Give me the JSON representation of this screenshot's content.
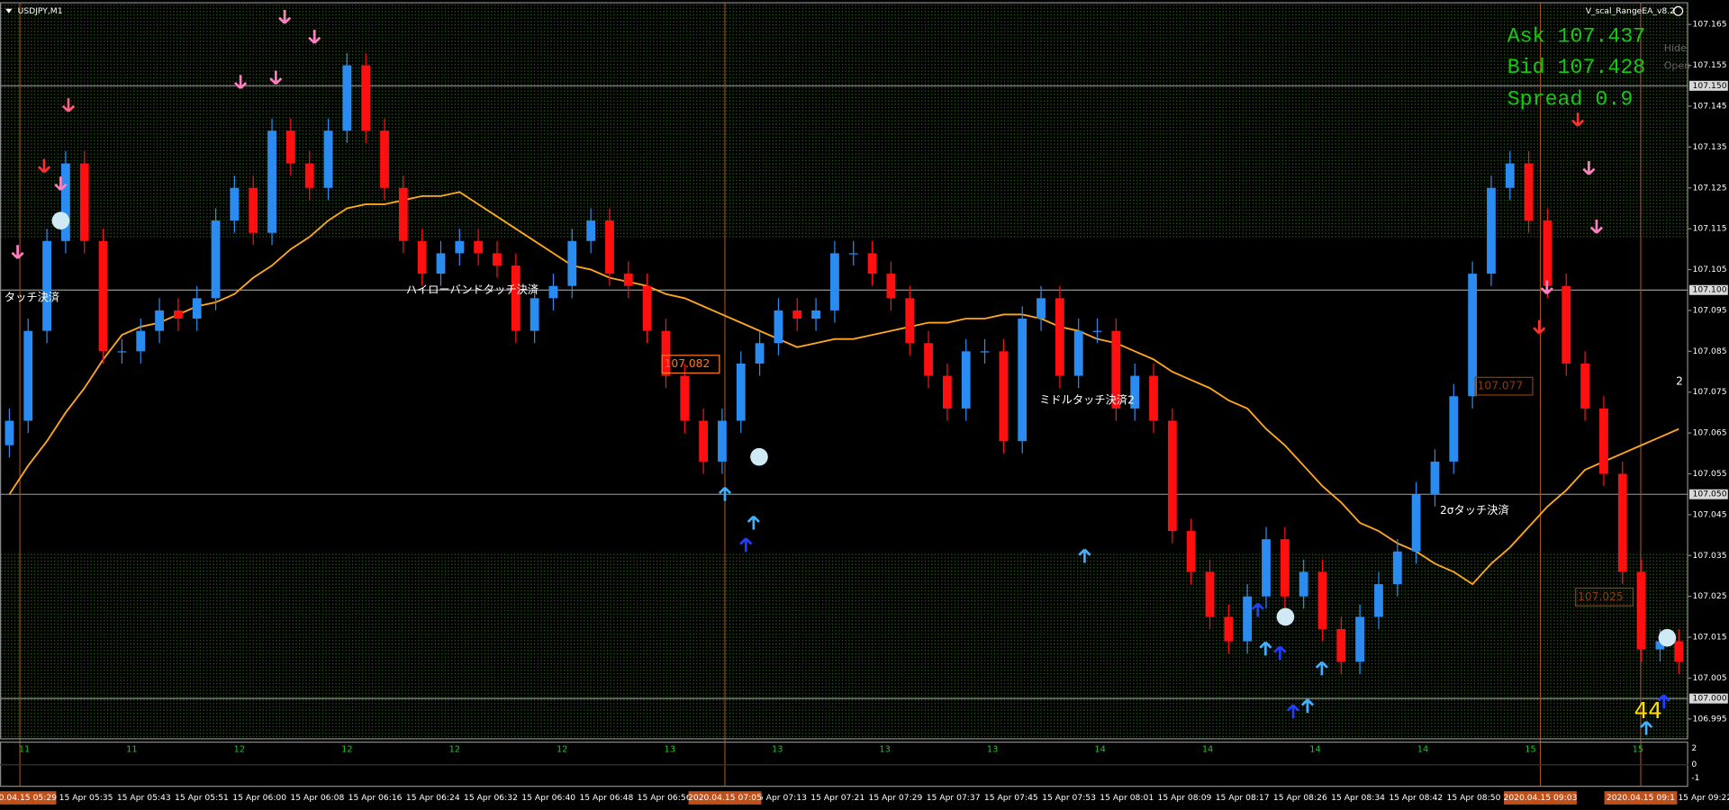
{
  "window": {
    "symbol": "USDJPY,M1",
    "ea_name": "V_scal_RangeEA_v8.2",
    "hide": "Hide",
    "open": "Open"
  },
  "info": {
    "ask": "Ask 107.437",
    "bid": "Bid 107.428",
    "spread": "Spread 0.9"
  },
  "chart_data": {
    "type": "candlestick",
    "up_color": "#2a8cf0",
    "down_color": "#ff1010",
    "open": [
      107.062,
      107.068,
      107.09,
      107.112,
      107.131,
      107.112,
      107.085,
      107.085,
      107.09,
      107.095,
      107.093,
      107.098,
      107.117,
      107.125,
      107.114,
      107.139,
      107.131,
      107.125,
      107.139,
      107.155,
      107.139,
      107.125,
      107.112,
      107.104,
      107.109,
      107.112,
      107.109,
      107.106,
      107.09,
      107.098,
      107.101,
      107.112,
      107.117,
      107.104,
      107.101,
      107.09,
      107.079,
      107.068,
      107.058,
      107.068,
      107.082,
      107.087,
      107.095,
      107.093,
      107.095,
      107.109,
      107.109,
      107.104,
      107.098,
      107.087,
      107.079,
      107.071,
      107.085,
      107.085,
      107.063,
      107.093,
      107.098,
      107.079,
      107.09,
      107.09,
      107.071,
      107.079,
      107.068,
      107.041,
      107.031,
      107.02,
      107.014,
      107.025,
      107.039,
      107.025,
      107.031,
      107.017,
      107.009,
      107.02,
      107.028,
      107.036,
      107.05,
      107.058,
      107.074,
      107.104,
      107.125,
      107.131,
      107.117,
      107.101,
      107.082,
      107.071,
      107.055,
      107.031,
      107.012,
      107.014
    ],
    "high": [
      107.071,
      107.093,
      107.115,
      107.134,
      107.134,
      107.115,
      107.088,
      107.093,
      107.098,
      107.098,
      107.101,
      107.12,
      107.128,
      107.128,
      107.142,
      107.142,
      107.134,
      107.142,
      107.158,
      107.158,
      107.142,
      107.128,
      107.115,
      107.112,
      107.115,
      107.115,
      107.112,
      107.109,
      107.101,
      107.104,
      107.115,
      107.12,
      107.12,
      107.107,
      107.104,
      107.093,
      107.082,
      107.071,
      107.071,
      107.085,
      107.09,
      107.098,
      107.098,
      107.098,
      107.112,
      107.112,
      107.112,
      107.107,
      107.101,
      107.09,
      107.082,
      107.088,
      107.088,
      107.088,
      107.096,
      107.101,
      107.101,
      107.093,
      107.093,
      107.093,
      107.082,
      107.082,
      107.071,
      107.044,
      107.034,
      107.023,
      107.028,
      107.042,
      107.042,
      107.034,
      107.034,
      107.02,
      107.023,
      107.031,
      107.039,
      107.053,
      107.061,
      107.077,
      107.107,
      107.128,
      107.134,
      107.134,
      107.12,
      107.104,
      107.085,
      107.074,
      107.058,
      107.034,
      107.017,
      107.017
    ],
    "low": [
      107.059,
      107.065,
      107.087,
      107.109,
      107.109,
      107.082,
      107.082,
      107.082,
      107.087,
      107.09,
      107.09,
      107.095,
      107.114,
      107.111,
      107.111,
      107.128,
      107.122,
      107.122,
      107.136,
      107.136,
      107.122,
      107.109,
      107.101,
      107.101,
      107.106,
      107.106,
      107.103,
      107.087,
      107.087,
      107.095,
      107.098,
      107.109,
      107.101,
      107.098,
      107.087,
      107.076,
      107.065,
      107.055,
      107.055,
      107.065,
      107.079,
      107.084,
      107.09,
      107.09,
      107.092,
      107.106,
      107.101,
      107.095,
      107.084,
      107.076,
      107.068,
      107.068,
      107.082,
      107.06,
      107.06,
      107.09,
      107.076,
      107.076,
      107.087,
      107.068,
      107.068,
      107.065,
      107.038,
      107.028,
      107.017,
      107.011,
      107.011,
      107.022,
      107.022,
      107.022,
      107.014,
      107.006,
      107.006,
      107.017,
      107.025,
      107.033,
      107.047,
      107.055,
      107.071,
      107.101,
      107.122,
      107.114,
      107.098,
      107.079,
      107.068,
      107.052,
      107.028,
      107.009,
      107.009,
      107.006
    ],
    "close": [
      107.068,
      107.09,
      107.112,
      107.131,
      107.112,
      107.085,
      107.085,
      107.09,
      107.095,
      107.093,
      107.098,
      107.117,
      107.125,
      107.114,
      107.139,
      107.131,
      107.125,
      107.139,
      107.155,
      107.139,
      107.125,
      107.112,
      107.104,
      107.109,
      107.112,
      107.109,
      107.106,
      107.09,
      107.098,
      107.101,
      107.112,
      107.117,
      107.104,
      107.101,
      107.09,
      107.079,
      107.068,
      107.058,
      107.068,
      107.082,
      107.087,
      107.095,
      107.093,
      107.095,
      107.109,
      107.109,
      107.104,
      107.098,
      107.087,
      107.079,
      107.071,
      107.085,
      107.085,
      107.063,
      107.093,
      107.098,
      107.079,
      107.09,
      107.09,
      107.071,
      107.079,
      107.068,
      107.041,
      107.031,
      107.02,
      107.014,
      107.025,
      107.039,
      107.025,
      107.031,
      107.017,
      107.009,
      107.02,
      107.028,
      107.036,
      107.05,
      107.058,
      107.074,
      107.104,
      107.125,
      107.131,
      107.117,
      107.101,
      107.082,
      107.071,
      107.055,
      107.031,
      107.012,
      107.014,
      107.009
    ],
    "ma": {
      "color": "#ffa81e",
      "values": [
        107.05,
        107.057,
        107.063,
        107.07,
        107.076,
        107.083,
        107.089,
        107.091,
        107.092,
        107.094,
        107.096,
        107.097,
        107.099,
        107.103,
        107.106,
        107.11,
        107.113,
        107.117,
        107.12,
        107.121,
        107.121,
        107.122,
        107.123,
        107.123,
        107.124,
        107.121,
        107.118,
        107.115,
        107.112,
        107.109,
        107.106,
        107.105,
        107.103,
        107.102,
        107.101,
        107.099,
        107.098,
        107.096,
        107.094,
        107.092,
        107.09,
        107.088,
        107.086,
        107.087,
        107.088,
        107.088,
        107.089,
        107.09,
        107.091,
        107.092,
        107.092,
        107.093,
        107.093,
        107.094,
        107.094,
        107.093,
        107.091,
        107.09,
        107.088,
        107.087,
        107.085,
        107.083,
        107.08,
        107.078,
        107.076,
        107.073,
        107.071,
        107.066,
        107.062,
        107.057,
        107.052,
        107.048,
        107.043,
        107.041,
        107.038,
        107.036,
        107.033,
        107.031,
        107.028,
        107.033,
        107.037,
        107.042,
        107.047,
        107.051,
        107.056,
        107.058,
        107.06,
        107.062,
        107.064,
        107.066
      ]
    },
    "ylim": [
      106.99,
      107.171
    ],
    "yticks": [
      107.165,
      107.155,
      107.145,
      107.135,
      107.125,
      107.115,
      107.105,
      107.095,
      107.085,
      107.075,
      107.065,
      107.055,
      107.045,
      107.035,
      107.025,
      107.015,
      107.005,
      106.995
    ],
    "levels": [
      {
        "value": 107.15,
        "label": "107.150"
      },
      {
        "value": 107.1,
        "label": "107.100"
      },
      {
        "value": 107.05,
        "label": "107.050"
      },
      {
        "value": 107,
        "label": "107.000"
      }
    ],
    "time_labels": [
      "15 Apr 05:35",
      "15 Apr 05:43",
      "15 Apr 05:51",
      "15 Apr 06:00",
      "15 Apr 06:08",
      "15 Apr 06:16",
      "15 Apr 06:24",
      "15 Apr 06:32",
      "15 Apr 06:40",
      "15 Apr 06:48",
      "15 Apr 06:56",
      null,
      "15 Apr 07:13",
      "15 Apr 07:21",
      "15 Apr 07:29",
      "15 Apr 07:37",
      "15 Apr 07:45",
      "15 Apr 07:53",
      "15 Apr 08:01",
      "15 Apr 08:09",
      "15 Apr 08:17",
      "15 Apr 08:26",
      "15 Apr 08:34",
      "15 Apr 08:42",
      "15 Apr 08:50",
      null,
      null,
      null,
      "15 Apr 09:22"
    ],
    "cursor_labels": [
      "2020.04.15 05:29",
      "2020.04.15 07:05",
      "2020.04.15 09:03",
      "2020.04.15 09:1"
    ],
    "annotations": [
      "タッチ決済",
      "ハイローバンドタッチ決済",
      "107.082",
      "ミドルタッチ決済2",
      "2σタッチ決済",
      "107.077",
      "107.025",
      "44",
      "2"
    ],
    "sub_labels": [
      "11",
      "11",
      "12",
      "12",
      "12",
      "12",
      "13",
      "13",
      "13",
      "13",
      "14",
      "14",
      "14",
      "14",
      "15",
      "15"
    ],
    "sub_yticks": [
      "2",
      "0",
      "-1"
    ]
  }
}
